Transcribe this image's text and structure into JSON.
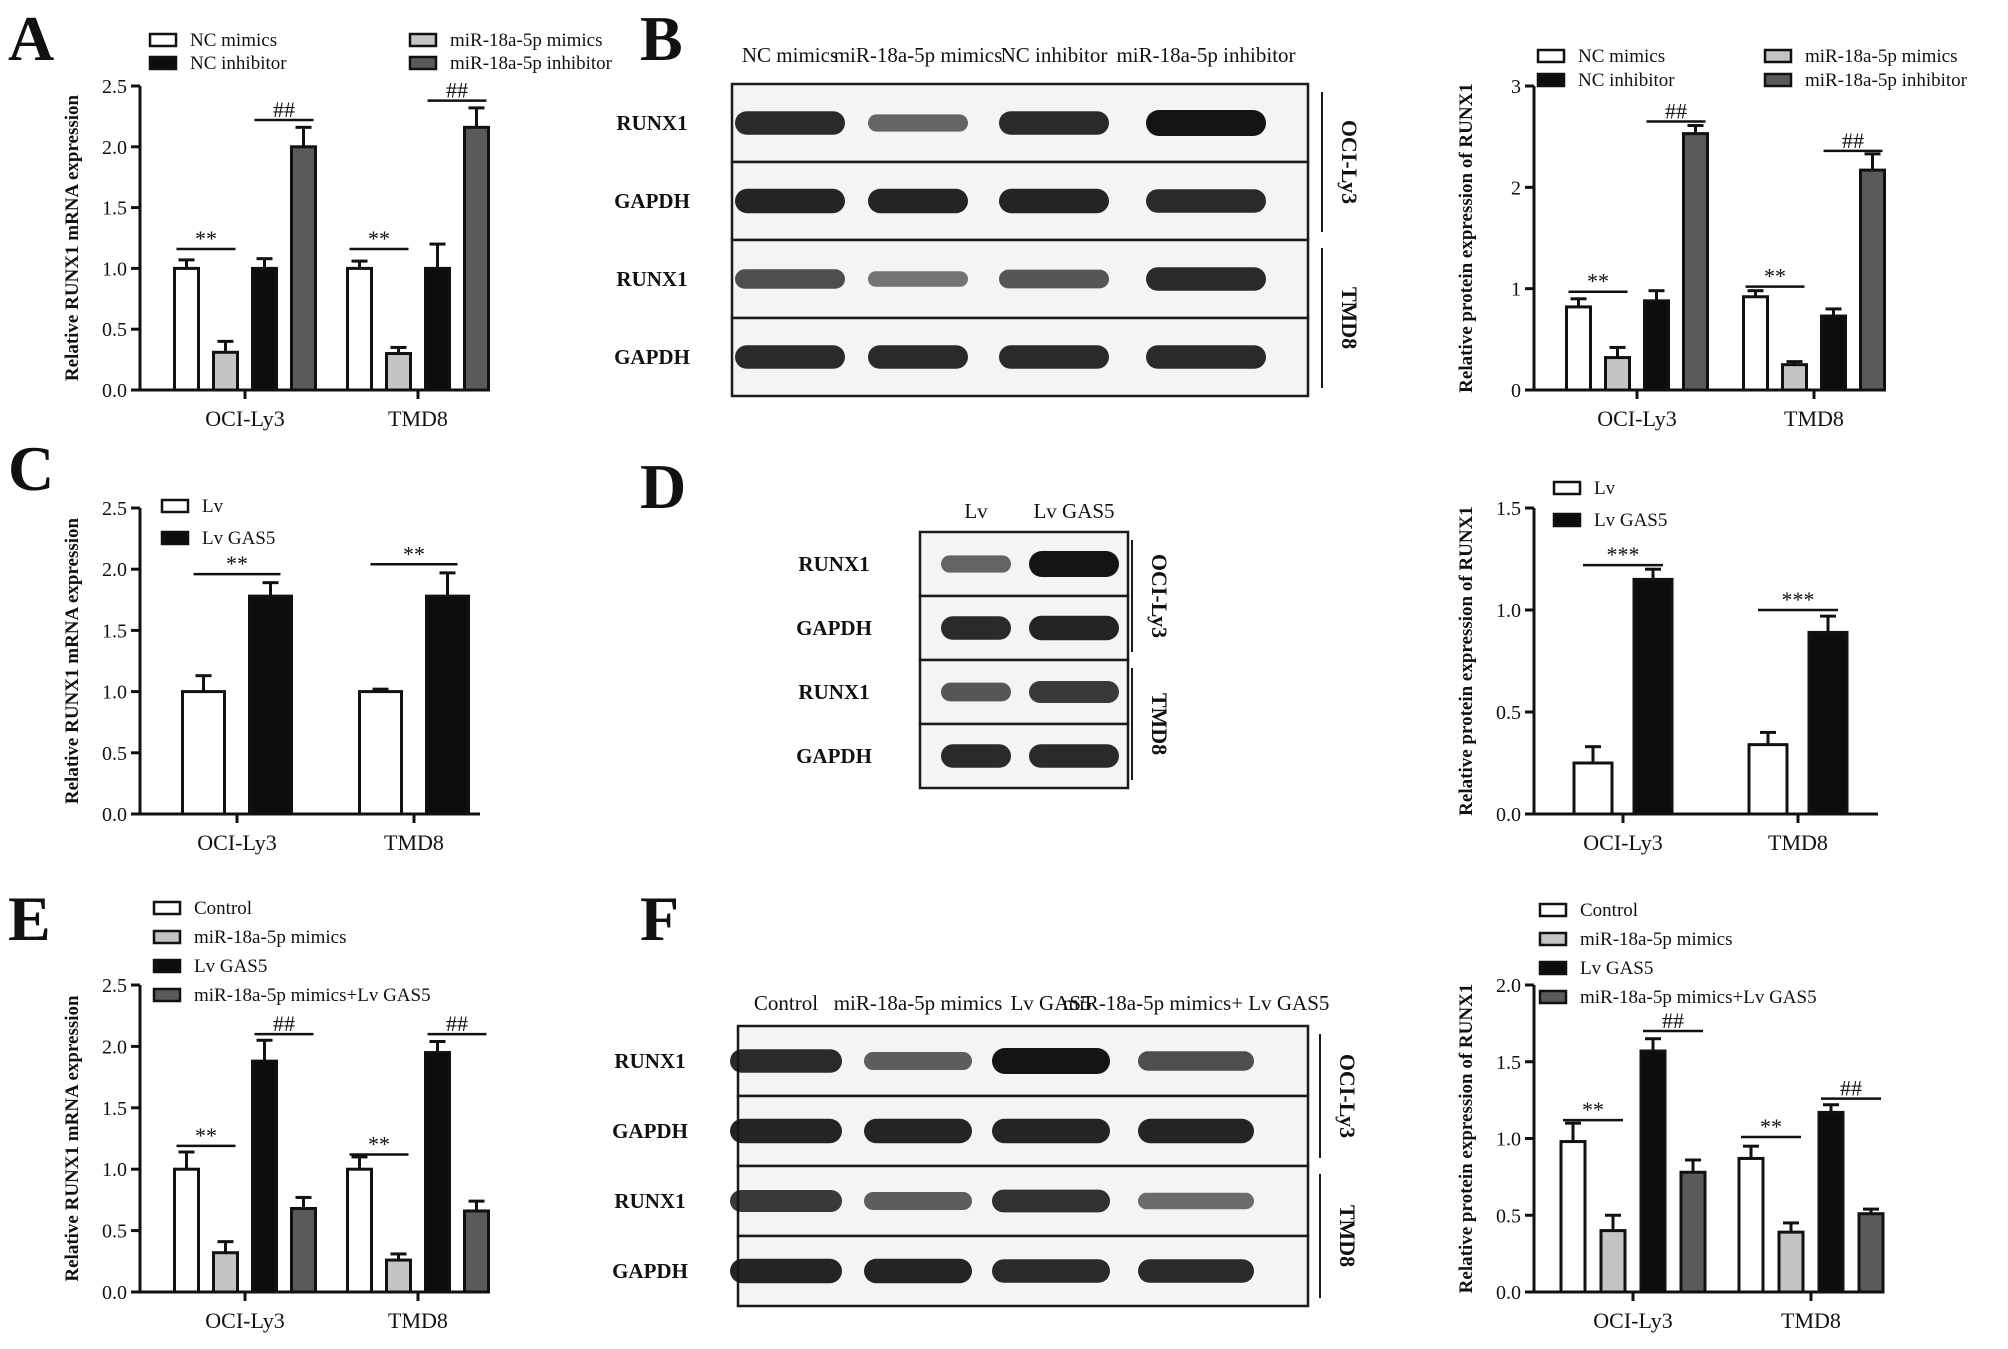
{
  "panels": {
    "A": "A",
    "B": "B",
    "C": "C",
    "D": "D",
    "E": "E",
    "F": "F"
  },
  "colors": {
    "white": "#ffffff",
    "light_gray": "#c4c4c4",
    "black": "#0d0d0d",
    "dark_gray": "#5a5a5a",
    "axis": "#111111"
  },
  "chart_data": [
    {
      "id": "A",
      "type": "bar",
      "ylabel": "Relative RUNX1 mRNA expression",
      "ylim": [
        0,
        2.5
      ],
      "ticks": [
        "0.0",
        "0.5",
        "1.0",
        "1.5",
        "2.0",
        "2.5"
      ],
      "categories": [
        "OCI-Ly3",
        "TMD8"
      ],
      "series": [
        {
          "name": "NC mimics",
          "color": "white",
          "values": [
            1.0,
            1.0
          ],
          "errors": [
            0.07,
            0.06
          ]
        },
        {
          "name": "miR-18a-5p mimics",
          "color": "light_gray",
          "values": [
            0.31,
            0.3
          ],
          "errors": [
            0.09,
            0.05
          ]
        },
        {
          "name": "NC inhibitor",
          "color": "black",
          "values": [
            1.0,
            1.0
          ],
          "errors": [
            0.08,
            0.2
          ]
        },
        {
          "name": "miR-18a-5p inhibitor",
          "color": "dark_gray",
          "values": [
            2.0,
            2.16
          ],
          "errors": [
            0.16,
            0.16
          ]
        }
      ],
      "annotations": [
        {
          "label": "**",
          "category": 0,
          "from": 0,
          "to": 1,
          "y": 1.16
        },
        {
          "label": "##",
          "category": 0,
          "from": 2,
          "to": 3,
          "y": 2.22
        },
        {
          "label": "**",
          "category": 1,
          "from": 0,
          "to": 1,
          "y": 1.16
        },
        {
          "label": "##",
          "category": 1,
          "from": 2,
          "to": 3,
          "y": 2.38
        }
      ]
    },
    {
      "id": "B",
      "type": "bar",
      "ylabel": "Relative protein expression of RUNX1",
      "ylim": [
        0,
        3
      ],
      "ticks": [
        "0",
        "1",
        "2",
        "3"
      ],
      "categories": [
        "OCI-Ly3",
        "TMD8"
      ],
      "series": [
        {
          "name": "NC mimics",
          "color": "white",
          "values": [
            0.82,
            0.92
          ],
          "errors": [
            0.08,
            0.06
          ]
        },
        {
          "name": "miR-18a-5p mimics",
          "color": "light_gray",
          "values": [
            0.32,
            0.25
          ],
          "errors": [
            0.1,
            0.03
          ]
        },
        {
          "name": "NC inhibitor",
          "color": "black",
          "values": [
            0.88,
            0.73
          ],
          "errors": [
            0.1,
            0.07
          ]
        },
        {
          "name": "miR-18a-5p inhibitor",
          "color": "dark_gray",
          "values": [
            2.53,
            2.17
          ],
          "errors": [
            0.08,
            0.16
          ]
        }
      ],
      "annotations": [
        {
          "label": "**",
          "category": 0,
          "from": 0,
          "to": 1,
          "y": 0.97
        },
        {
          "label": "##",
          "category": 0,
          "from": 2,
          "to": 3,
          "y": 2.65
        },
        {
          "label": "**",
          "category": 1,
          "from": 0,
          "to": 1,
          "y": 1.02
        },
        {
          "label": "##",
          "category": 1,
          "from": 2,
          "to": 3,
          "y": 2.36
        }
      ]
    },
    {
      "id": "C",
      "type": "bar",
      "ylabel": "Relative RUNX1 mRNA expression",
      "ylim": [
        0,
        2.5
      ],
      "ticks": [
        "0.0",
        "0.5",
        "1.0",
        "1.5",
        "2.0",
        "2.5"
      ],
      "categories": [
        "OCI-Ly3",
        "TMD8"
      ],
      "series": [
        {
          "name": "Lv",
          "color": "white",
          "values": [
            1.0,
            1.0
          ],
          "errors": [
            0.13,
            0.02
          ]
        },
        {
          "name": "Lv GAS5",
          "color": "black",
          "values": [
            1.78,
            1.78
          ],
          "errors": [
            0.11,
            0.19
          ]
        }
      ],
      "annotations": [
        {
          "label": "**",
          "category": 0,
          "from": 0,
          "to": 1,
          "y": 1.96
        },
        {
          "label": "**",
          "category": 1,
          "from": 0,
          "to": 1,
          "y": 2.04
        }
      ]
    },
    {
      "id": "D",
      "type": "bar",
      "ylabel": "Relative protein expression of RUNX1",
      "ylim": [
        0,
        1.5
      ],
      "ticks": [
        "0.0",
        "0.5",
        "1.0",
        "1.5"
      ],
      "categories": [
        "OCI-Ly3",
        "TMD8"
      ],
      "series": [
        {
          "name": "Lv",
          "color": "white",
          "values": [
            0.25,
            0.34
          ],
          "errors": [
            0.08,
            0.06
          ]
        },
        {
          "name": "Lv GAS5",
          "color": "black",
          "values": [
            1.15,
            0.89
          ],
          "errors": [
            0.05,
            0.08
          ]
        }
      ],
      "annotations": [
        {
          "label": "***",
          "category": 0,
          "from": 0,
          "to": 1,
          "y": 1.22
        },
        {
          "label": "***",
          "category": 1,
          "from": 0,
          "to": 1,
          "y": 1.0
        }
      ]
    },
    {
      "id": "E",
      "type": "bar",
      "ylabel": "Relative RUNX1 mRNA expression",
      "ylim": [
        0,
        2.5
      ],
      "ticks": [
        "0.0",
        "0.5",
        "1.0",
        "1.5",
        "2.0",
        "2.5"
      ],
      "categories": [
        "OCI-Ly3",
        "TMD8"
      ],
      "series": [
        {
          "name": "Control",
          "color": "white",
          "values": [
            1.0,
            1.0
          ],
          "errors": [
            0.14,
            0.1
          ]
        },
        {
          "name": "miR-18a-5p mimics",
          "color": "light_gray",
          "values": [
            0.32,
            0.26
          ],
          "errors": [
            0.09,
            0.05
          ]
        },
        {
          "name": "Lv GAS5",
          "color": "black",
          "values": [
            1.88,
            1.95
          ],
          "errors": [
            0.17,
            0.09
          ]
        },
        {
          "name": "miR-18a-5p mimics+Lv GAS5",
          "color": "dark_gray",
          "values": [
            0.68,
            0.66
          ],
          "errors": [
            0.09,
            0.08
          ]
        }
      ],
      "annotations": [
        {
          "label": "**",
          "category": 0,
          "from": 0,
          "to": 1,
          "y": 1.19
        },
        {
          "label": "##",
          "category": 0,
          "from": 2,
          "to": 3,
          "y": 2.1
        },
        {
          "label": "**",
          "category": 1,
          "from": 0,
          "to": 1,
          "y": 1.12
        },
        {
          "label": "##",
          "category": 1,
          "from": 2,
          "to": 3,
          "y": 2.1
        }
      ]
    },
    {
      "id": "F",
      "type": "bar",
      "ylabel": "Relative protein expression of RUNX1",
      "ylim": [
        0,
        2.0
      ],
      "ticks": [
        "0.0",
        "0.5",
        "1.0",
        "1.5",
        "2.0"
      ],
      "categories": [
        "OCI-Ly3",
        "TMD8"
      ],
      "series": [
        {
          "name": "Control",
          "color": "white",
          "values": [
            0.98,
            0.87
          ],
          "errors": [
            0.12,
            0.08
          ]
        },
        {
          "name": "miR-18a-5p mimics",
          "color": "light_gray",
          "values": [
            0.4,
            0.39
          ],
          "errors": [
            0.1,
            0.06
          ]
        },
        {
          "name": "Lv GAS5",
          "color": "black",
          "values": [
            1.57,
            1.17
          ],
          "errors": [
            0.08,
            0.05
          ]
        },
        {
          "name": "miR-18a-5p mimics+Lv GAS5",
          "color": "dark_gray",
          "values": [
            0.78,
            0.51
          ],
          "errors": [
            0.08,
            0.03
          ]
        }
      ],
      "annotations": [
        {
          "label": "**",
          "category": 0,
          "from": 0,
          "to": 1,
          "y": 1.12
        },
        {
          "label": "##",
          "category": 0,
          "from": 2,
          "to": 3,
          "y": 1.7
        },
        {
          "label": "**",
          "category": 1,
          "from": 0,
          "to": 1,
          "y": 1.01
        },
        {
          "label": "##",
          "category": 1,
          "from": 2,
          "to": 3,
          "y": 1.26
        }
      ]
    }
  ],
  "blots": {
    "B": {
      "columns": [
        "NC mimics",
        "miR-18a-5p mimics",
        "NC inhibitor",
        "miR-18a-5p inhibitor"
      ],
      "rows": [
        "RUNX1",
        "GAPDH",
        "RUNX1",
        "GAPDH"
      ],
      "cell_lines": [
        "OCI-Ly3",
        "TMD8"
      ],
      "intensities": [
        [
          0.85,
          0.45,
          0.85,
          1.0
        ],
        [
          0.9,
          0.9,
          0.9,
          0.85
        ],
        [
          0.6,
          0.35,
          0.55,
          0.85
        ],
        [
          0.85,
          0.85,
          0.85,
          0.85
        ]
      ]
    },
    "D": {
      "columns": [
        "Lv",
        "Lv  GAS5"
      ],
      "rows": [
        "RUNX1",
        "GAPDH",
        "RUNX1",
        "GAPDH"
      ],
      "cell_lines": [
        "OCI-Ly3",
        "TMD8"
      ],
      "intensities": [
        [
          0.45,
          1.0
        ],
        [
          0.85,
          0.9
        ],
        [
          0.55,
          0.75
        ],
        [
          0.85,
          0.85
        ]
      ]
    },
    "F": {
      "columns": [
        "Control",
        "miR-18a-5p mimics",
        "Lv GAS5",
        "miR-18a-5p mimics+ Lv GAS5"
      ],
      "rows": [
        "RUNX1",
        "GAPDH",
        "RUNX1",
        "GAPDH"
      ],
      "cell_lines": [
        "OCI-Ly3",
        "TMD8"
      ],
      "intensities": [
        [
          0.85,
          0.5,
          1.0,
          0.6
        ],
        [
          0.9,
          0.9,
          0.9,
          0.9
        ],
        [
          0.75,
          0.5,
          0.8,
          0.4
        ],
        [
          0.9,
          0.9,
          0.85,
          0.85
        ]
      ]
    }
  }
}
